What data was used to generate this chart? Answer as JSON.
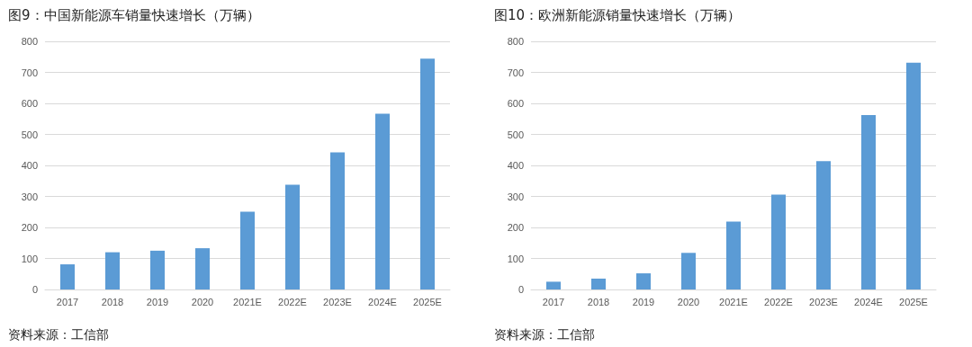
{
  "chart_data": [
    {
      "type": "bar",
      "title": "图9：中国新能源车销量快速增长（万辆）",
      "categories": [
        "2017",
        "2018",
        "2019",
        "2020",
        "2021E",
        "2022E",
        "2023E",
        "2024E",
        "2025E"
      ],
      "values": [
        81,
        120,
        125,
        133,
        251,
        338,
        442,
        567,
        744
      ],
      "color": "#5b9bd5",
      "ylim": [
        0,
        800
      ],
      "yticks": [
        0,
        100,
        200,
        300,
        400,
        500,
        600,
        700,
        800
      ],
      "grid": "y",
      "annotations": [
        "资料来源：工信部"
      ]
    },
    {
      "type": "bar",
      "title": "图10：欧洲新能源销量快速增长（万辆）",
      "categories": [
        "2017",
        "2018",
        "2019",
        "2020",
        "2021E",
        "2022E",
        "2023E",
        "2024E",
        "2025E"
      ],
      "values": [
        25,
        35,
        52,
        118,
        219,
        306,
        414,
        562,
        731
      ],
      "color": "#5b9bd5",
      "ylim": [
        0,
        800
      ],
      "yticks": [
        0,
        100,
        200,
        300,
        400,
        500,
        600,
        700,
        800
      ],
      "grid": "y",
      "annotations": [
        "资料来源：工信部"
      ]
    }
  ]
}
